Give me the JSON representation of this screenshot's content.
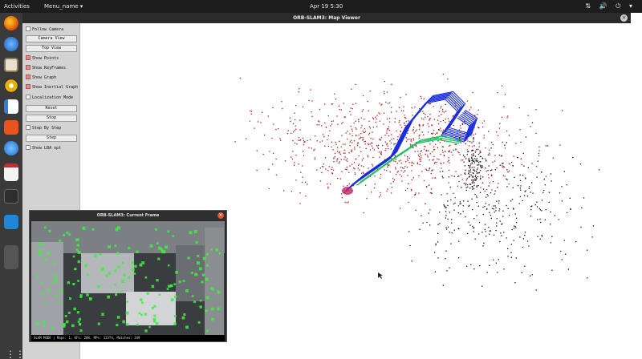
{
  "topbar": {
    "activities": "Activities",
    "app_menu": "Menu_name ▾",
    "clock": "Apr 19  5:30",
    "tray": "⇅ 🔊 ⏻ ▾"
  },
  "dock": {
    "icons": [
      "firefox-icon",
      "thunderbird-icon",
      "files-icon",
      "rhythmbox-icon",
      "writer-icon",
      "software-center-icon",
      "help-icon",
      "text-editor-icon",
      "terminal-icon",
      "vscode-icon"
    ],
    "grid_glyph": "⋮⋮⋮"
  },
  "map_viewer": {
    "title": "ORB-SLAM3: Map Viewer",
    "close_glyph": "×",
    "controls": [
      {
        "kind": "check",
        "label": "Follow Camera",
        "checked": false
      },
      {
        "kind": "button",
        "label": "Camera View"
      },
      {
        "kind": "button",
        "label": "Top View"
      },
      {
        "kind": "check",
        "label": "Show Points",
        "checked": true
      },
      {
        "kind": "check",
        "label": "Show KeyFrames",
        "checked": true
      },
      {
        "kind": "check",
        "label": "Show Graph",
        "checked": true
      },
      {
        "kind": "check",
        "label": "Show Inertial Graph",
        "checked": true
      },
      {
        "kind": "check",
        "label": "Localization Mode",
        "checked": false
      },
      {
        "kind": "button",
        "label": "Reset"
      },
      {
        "kind": "button",
        "label": "Stop"
      },
      {
        "kind": "check",
        "label": "Step By Step",
        "checked": false
      },
      {
        "kind": "button",
        "label": "Step"
      },
      {
        "kind": "check",
        "label": "Show LBA opt",
        "checked": false
      }
    ]
  },
  "current_frame": {
    "title": "ORB-SLAM3: Current Frame",
    "close_glyph": "×",
    "status": "SLAM MODE |  Maps: 1, KFs: 208, MPs: 12374, Matches: 349"
  },
  "colors": {
    "map_points": "#b01818",
    "ref_points": "#111111",
    "trajectory_blue": "#1a2ee0",
    "trajectory_green": "#22c060",
    "feature_green": "#3cf03c"
  }
}
